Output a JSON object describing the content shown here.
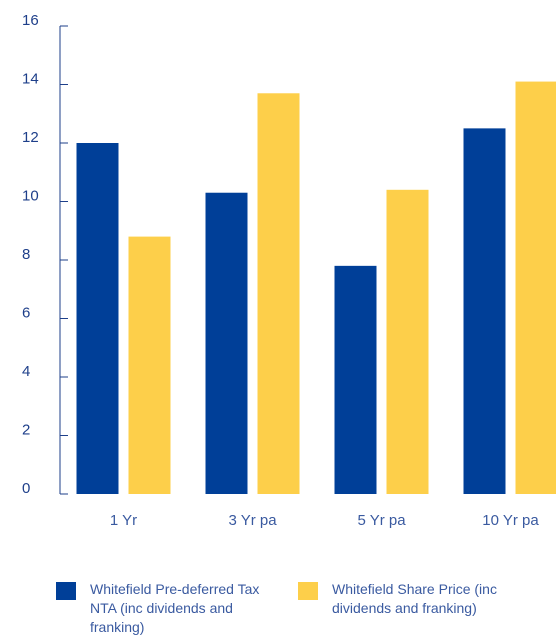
{
  "chart_data": {
    "type": "bar",
    "categories": [
      "1 Yr",
      "3 Yr pa",
      "5 Yr pa",
      "10 Yr pa"
    ],
    "series": [
      {
        "name": "Whitefield Pre-deferred Tax NTA (inc dividends and franking)",
        "color": "#003f98",
        "values": [
          12.0,
          10.3,
          7.8,
          12.5
        ]
      },
      {
        "name": "Whitefield Share Price (inc dividends and franking)",
        "color": "#fdcf4a",
        "values": [
          8.8,
          13.7,
          10.4,
          14.1
        ]
      }
    ],
    "ylim": [
      0,
      16
    ],
    "yticks": [
      0,
      2,
      4,
      6,
      8,
      10,
      12,
      14,
      16
    ]
  }
}
